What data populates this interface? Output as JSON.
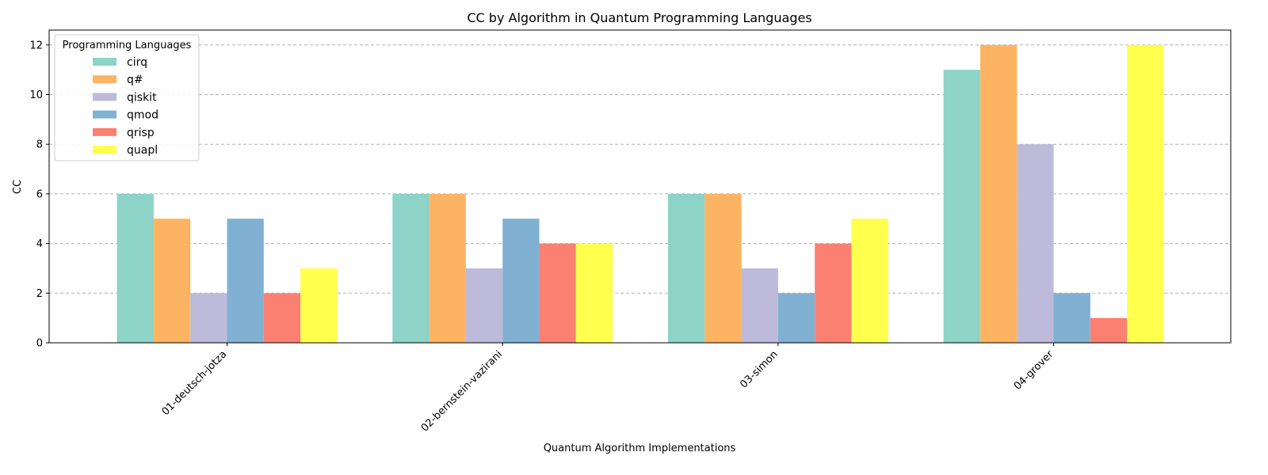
{
  "chart_data": {
    "type": "bar",
    "title": "CC by Algorithm in Quantum Programming Languages",
    "xlabel": "Quantum Algorithm Implementations",
    "ylabel": "CC",
    "ylim": [
      0,
      12.6
    ],
    "yticks": [
      "0",
      "2",
      "4",
      "6",
      "8",
      "10",
      "12"
    ],
    "grid": "horizontal dashed",
    "legend": {
      "title": "Programming Languages",
      "placement": "top-left"
    },
    "categories": [
      "01-deutsch-jotza",
      "02-bernstein-vazirani",
      "03-simon",
      "04-grover"
    ],
    "series": [
      {
        "name": "cirq",
        "color": "#8dd3c7",
        "values": [
          6,
          6,
          6,
          11
        ]
      },
      {
        "name": "q#",
        "color": "#fdb462",
        "values": [
          5,
          6,
          6,
          12
        ]
      },
      {
        "name": "qiskit",
        "color": "#bebada",
        "values": [
          2,
          3,
          3,
          8
        ]
      },
      {
        "name": "qmod",
        "color": "#80b1d3",
        "values": [
          5,
          5,
          2,
          2
        ]
      },
      {
        "name": "qrisp",
        "color": "#fb8072",
        "values": [
          2,
          4,
          4,
          1
        ]
      },
      {
        "name": "quapl",
        "color": "#ffff4d",
        "values": [
          3,
          4,
          5,
          12
        ]
      }
    ]
  }
}
